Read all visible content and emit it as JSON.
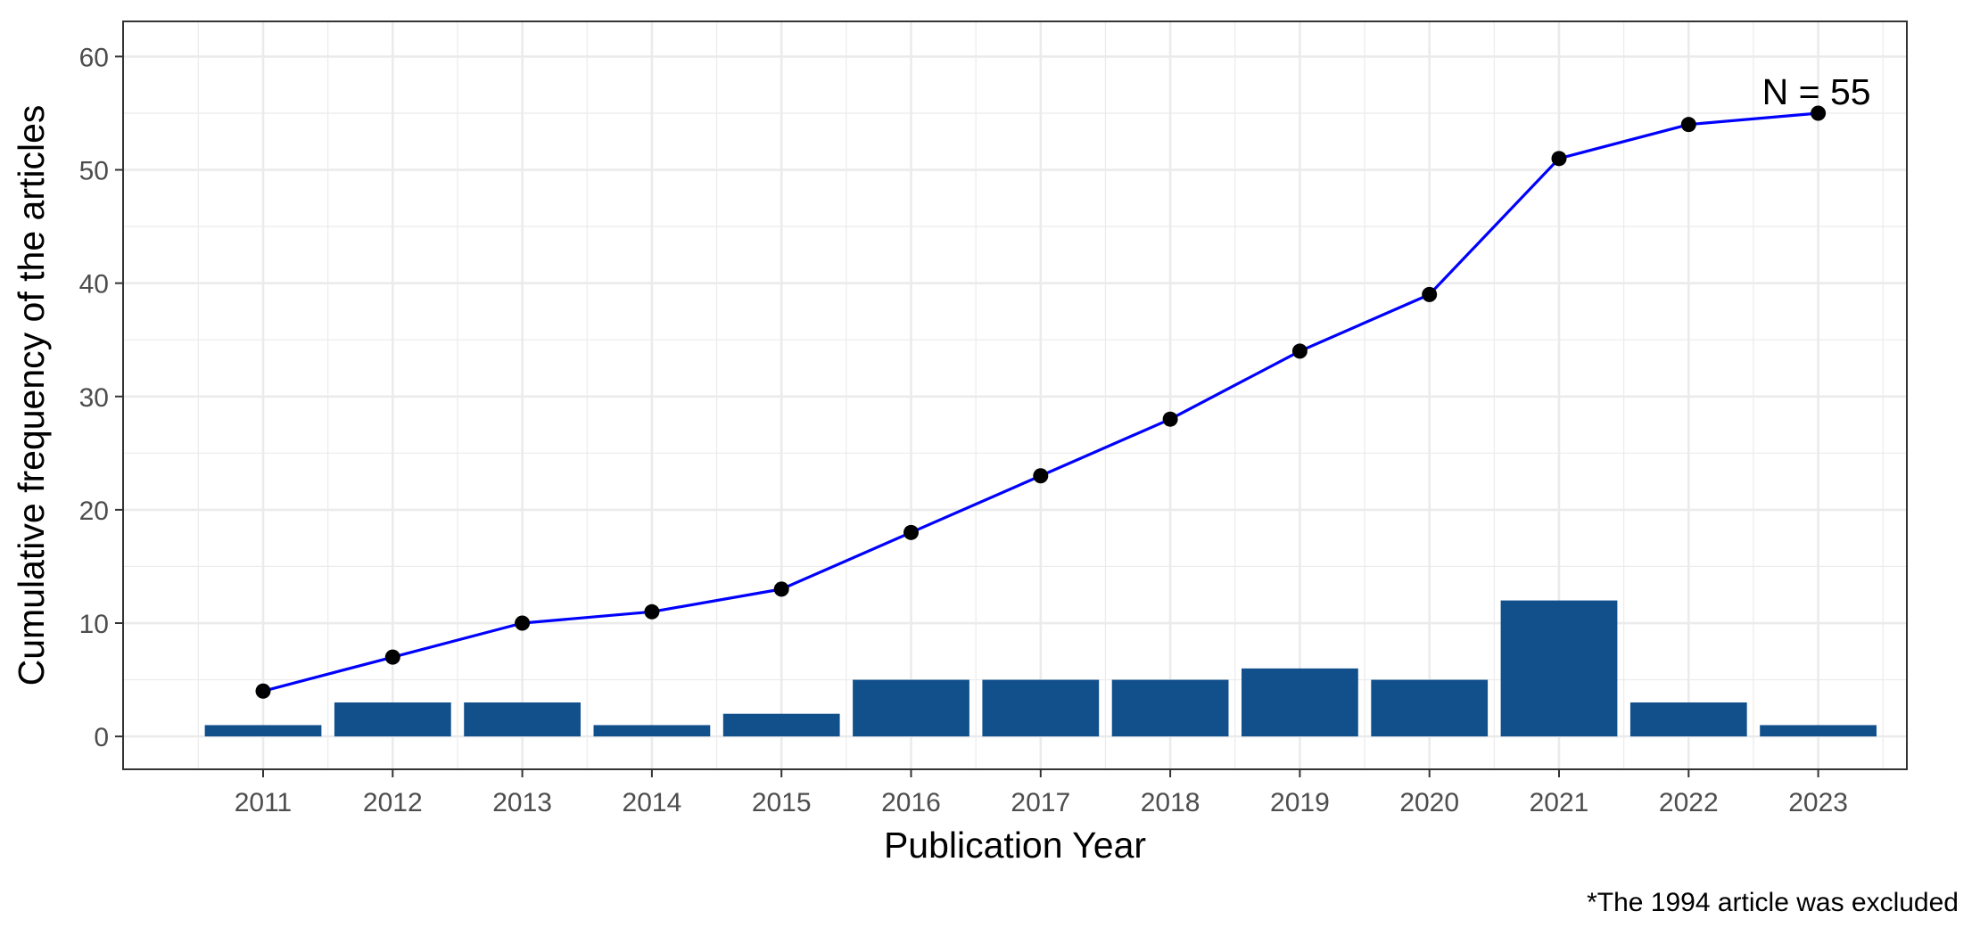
{
  "chart_data": {
    "type": "bar",
    "categories": [
      "2011",
      "2012",
      "2013",
      "2014",
      "2015",
      "2016",
      "2017",
      "2018",
      "2019",
      "2020",
      "2021",
      "2022",
      "2023"
    ],
    "series": [
      {
        "type": "bar",
        "values": [
          1,
          3,
          3,
          1,
          2,
          5,
          5,
          5,
          6,
          5,
          12,
          3,
          1
        ],
        "color": "#12508c"
      },
      {
        "type": "line",
        "values": [
          4,
          7,
          10,
          11,
          13,
          18,
          23,
          28,
          34,
          39,
          51,
          54,
          55
        ],
        "color": "#0000ff",
        "point_color": "#000000"
      }
    ],
    "xlabel": "Publication Year",
    "ylabel": "Cumulative frequency of the articles",
    "ylim": [
      -2.9,
      63.1
    ],
    "yticks": [
      0,
      10,
      20,
      30,
      40,
      50,
      60
    ],
    "annotation": "N = 55",
    "caption": "*The 1994 article was excluded",
    "grid": true,
    "theme": "bw"
  }
}
